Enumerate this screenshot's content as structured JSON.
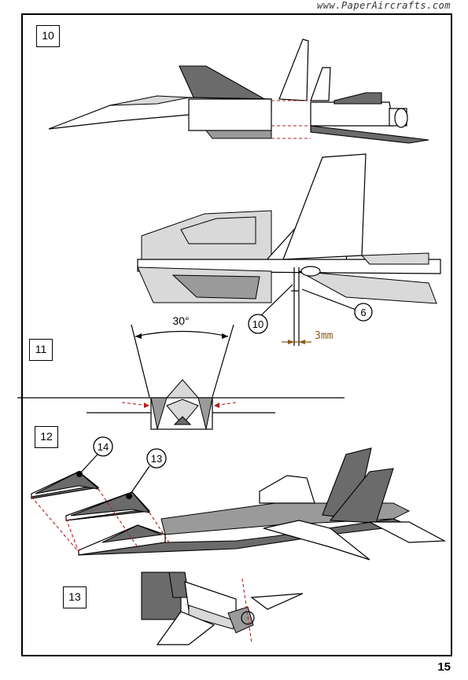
{
  "header": {
    "site_url": "www.PaperAircrafts.com"
  },
  "steps": [
    {
      "number": "10"
    },
    {
      "number": "11"
    },
    {
      "number": "12"
    },
    {
      "number": "13"
    }
  ],
  "callouts": {
    "part_10": "10",
    "part_6": "6",
    "part_14": "14",
    "part_13": "13"
  },
  "measurements": {
    "angle": "30°",
    "gap": "3mm"
  },
  "colors": {
    "dark_panel": "#6b6b6b",
    "light_panel": "#d9d9d9",
    "guide_line": "#b0201f",
    "dimension": "#8a5a1a"
  },
  "footer": {
    "page_number": "15"
  }
}
